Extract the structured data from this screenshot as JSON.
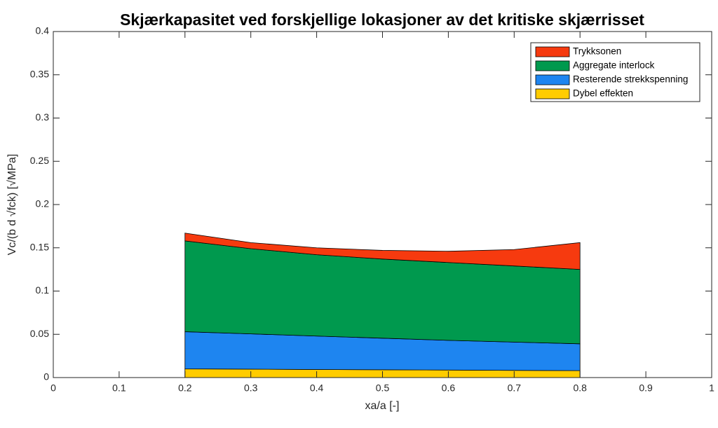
{
  "chart_data": {
    "type": "stacked_area",
    "title": "Skjærkapasitet ved forskjellige lokasjoner av det kritiske skjærrisset",
    "x_label": "xa/a [-]",
    "y_label": "Vc/(b d √fck) [√MPa]",
    "x": [
      0.2,
      0.3,
      0.4,
      0.5,
      0.6,
      0.7,
      0.8
    ],
    "series": [
      {
        "name": "Trykksonen",
        "color": "#f63a0f",
        "values": [
          0.009,
          0.007,
          0.008,
          0.01,
          0.013,
          0.019,
          0.031
        ]
      },
      {
        "name": "Aggregate interlock",
        "color": "#00994e",
        "values": [
          0.105,
          0.0985,
          0.094,
          0.0915,
          0.09,
          0.088,
          0.086
        ]
      },
      {
        "name": "Resterende strekkspenning",
        "color": "#1e85f0",
        "values": [
          0.043,
          0.0408,
          0.0387,
          0.0365,
          0.0343,
          0.0327,
          0.031
        ]
      },
      {
        "name": "Dybel effekten",
        "color": "#ffcc00",
        "values": [
          0.01,
          0.0097,
          0.0093,
          0.009,
          0.0087,
          0.0083,
          0.008
        ]
      }
    ],
    "xlim": [
      0,
      1
    ],
    "xticks": [
      0,
      0.1,
      0.2,
      0.3,
      0.4,
      0.5,
      0.6,
      0.7,
      0.8,
      0.9,
      1
    ],
    "ylim": [
      0,
      0.4
    ],
    "yticks": [
      0,
      0.05,
      0.1,
      0.15,
      0.2,
      0.25,
      0.3,
      0.35,
      0.4
    ],
    "legend": "upper right"
  }
}
